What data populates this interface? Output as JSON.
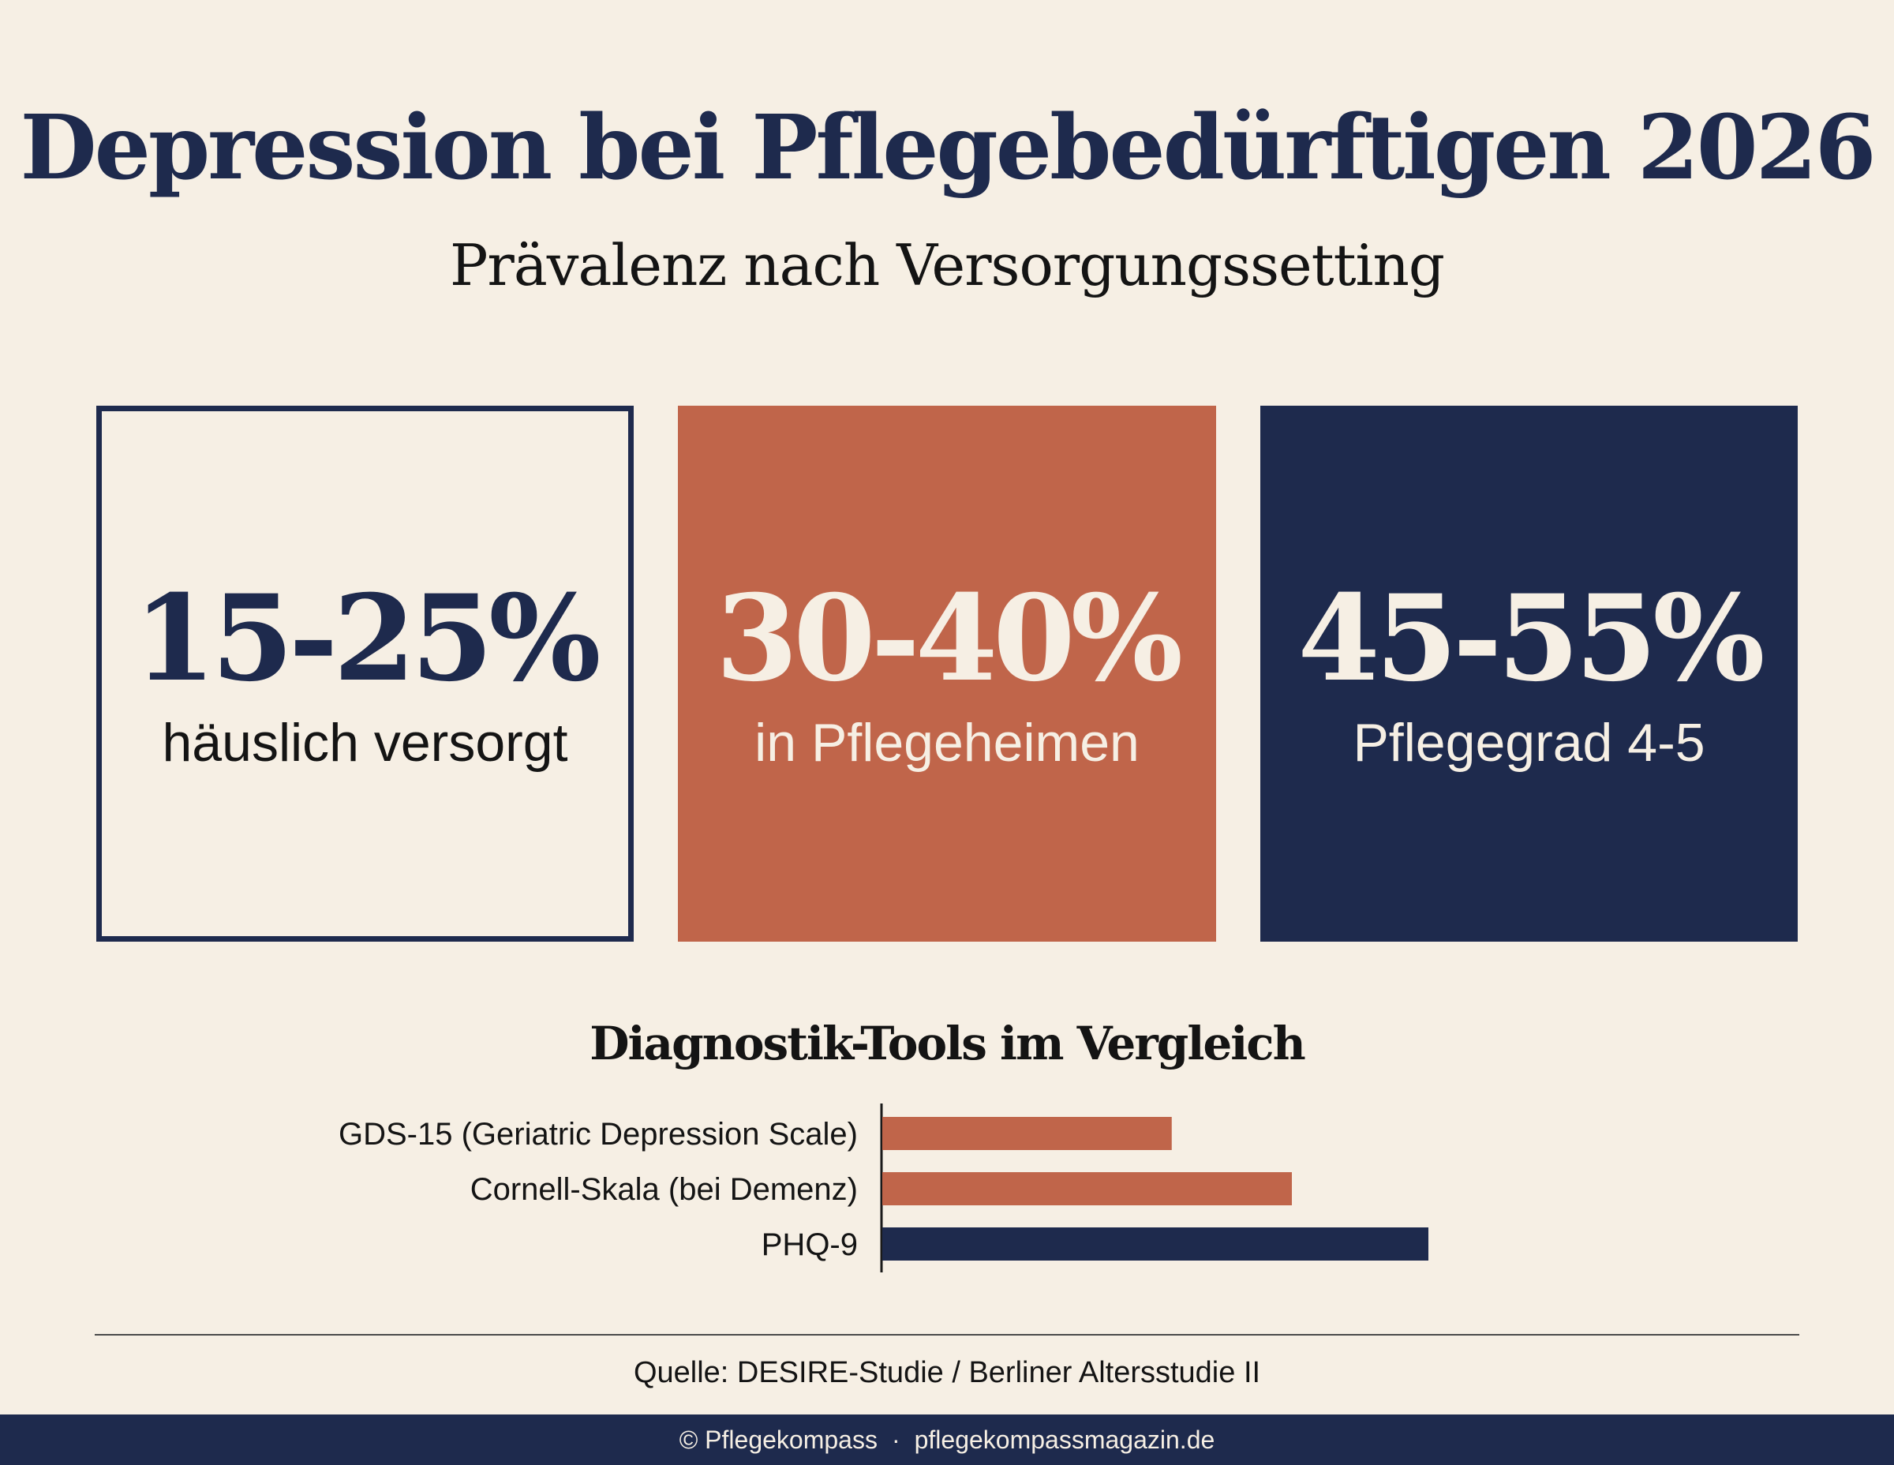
{
  "header": {
    "title": "Depression bei Pflegebedürftigen 2026",
    "subtitle": "Prävalenz nach Versorgungssetting"
  },
  "cards": [
    {
      "value": "15-25%",
      "label": "häuslich versorgt",
      "style": "outline",
      "color": "#1e2a4d"
    },
    {
      "value": "30-40%",
      "label": "in Pflegeheimen",
      "style": "filled",
      "color": "#c0654a"
    },
    {
      "value": "45-55%",
      "label": "Pflegegrad 4-5",
      "style": "filled",
      "color": "#1e2a4d"
    }
  ],
  "colors": {
    "background": "#f6efe4",
    "navy": "#1e2a4d",
    "terracotta": "#c0654a",
    "cream_text": "#f6efe4",
    "dark_text": "#141414"
  },
  "chart_data": {
    "type": "bar",
    "orientation": "horizontal",
    "title": "Diagnostik-Tools im Vergleich",
    "categories": [
      "GDS-15 (Geriatric Depression Scale)",
      "Cornell-Skala (bei Demenz)",
      "PHQ-9"
    ],
    "values": [
      53,
      75,
      100
    ],
    "value_unit": "relative bar length (no axis printed), longest = 100",
    "bar_colors": [
      "#c0654a",
      "#c0654a",
      "#1e2a4d"
    ],
    "xlim": [
      0,
      100
    ],
    "axis_ticks": false,
    "grid": false,
    "legend": "none"
  },
  "source": "Quelle: DESIRE-Studie / Berliner Altersstudie II",
  "footer": {
    "copyright": "© Pflegekompass",
    "separator": "·",
    "website": "pflegekompassmagazin.de",
    "background": "#1e2a4d"
  }
}
